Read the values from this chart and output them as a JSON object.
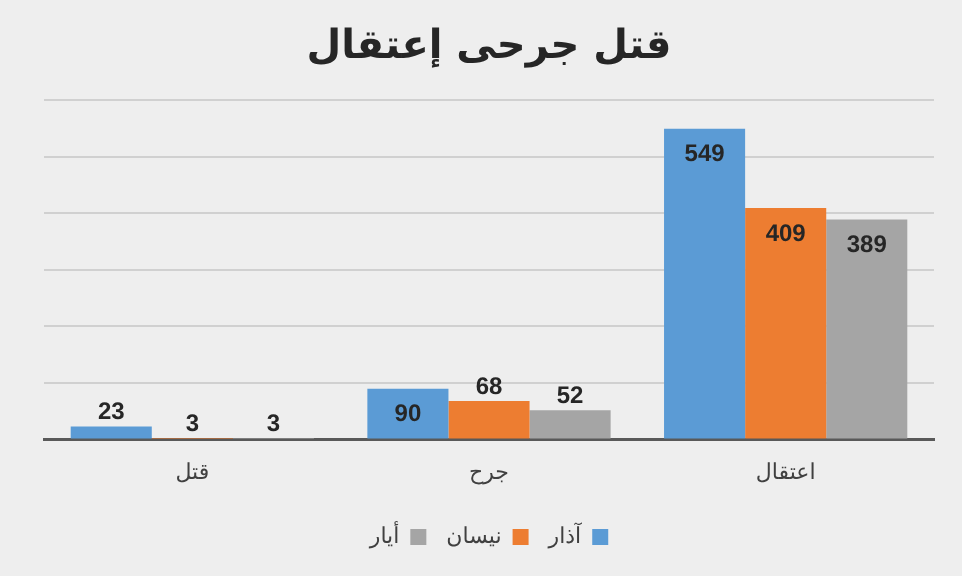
{
  "chart_data": {
    "type": "bar",
    "title": "قتل جرحى إعتقال",
    "categories": [
      "قتل",
      "جرح",
      "اعتقال"
    ],
    "series": [
      {
        "name": "آذار",
        "color": "#5b9bd5",
        "values": [
          23,
          90,
          549
        ]
      },
      {
        "name": "نيسان",
        "color": "#ed7d31",
        "values": [
          3,
          68,
          409
        ]
      },
      {
        "name": "أيار",
        "color": "#a5a5a5",
        "values": [
          3,
          52,
          389
        ]
      }
    ],
    "ylim": [
      0,
      600
    ],
    "yticks": [
      {
        "value": 0,
        "label": null
      },
      {
        "value": 100,
        "label": null
      },
      {
        "value": 200,
        "label": null
      },
      {
        "value": 300,
        "label": null
      },
      {
        "value": 400,
        "label": null
      },
      {
        "value": 500,
        "label": null
      },
      {
        "value": 600,
        "label": null
      }
    ],
    "tick_labels": "x",
    "grid": "y",
    "legend": "bottom",
    "data_labels": true
  }
}
